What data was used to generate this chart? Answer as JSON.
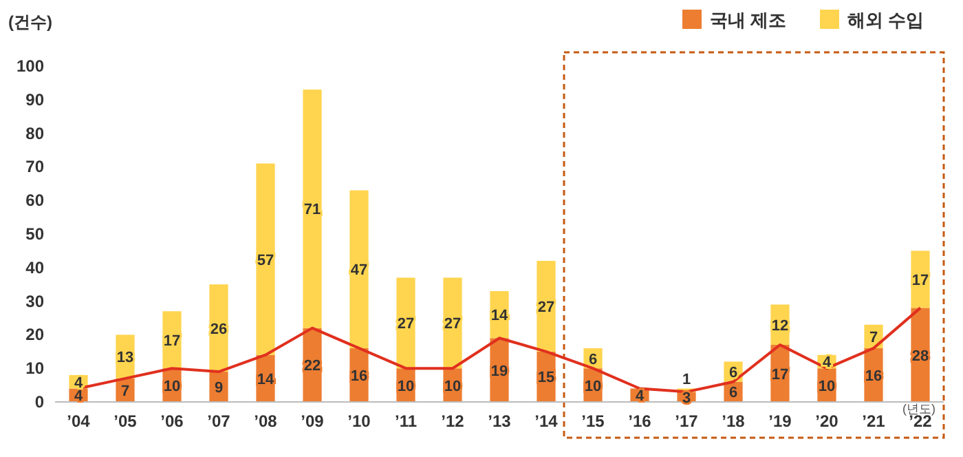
{
  "chart_data": {
    "type": "bar",
    "stacked": true,
    "ylabel": "(건수)",
    "xlabel": "(년도)",
    "categories": [
      "’04",
      "’05",
      "’06",
      "’07",
      "’08",
      "’09",
      "’10",
      "’11",
      "’12",
      "’13",
      "’14",
      "’15",
      "’16",
      "’17",
      "’18",
      "’19",
      "’20",
      "’21",
      "’22"
    ],
    "series": [
      {
        "name": "국내 제조",
        "color": "#ed7d31",
        "values": [
          4,
          7,
          10,
          9,
          14,
          22,
          16,
          10,
          10,
          19,
          15,
          10,
          4,
          3,
          6,
          17,
          10,
          16,
          28
        ],
        "value_labels": [
          "4",
          "7",
          "10",
          "9",
          "14",
          "22",
          "16",
          "10",
          "10",
          "19",
          "15",
          "10",
          "4",
          "3",
          "6",
          "17",
          "10",
          "16",
          "28"
        ]
      },
      {
        "name": "해외 수입",
        "color": "#ffd54f",
        "values": [
          4,
          13,
          17,
          26,
          57,
          71,
          47,
          27,
          27,
          14,
          27,
          6,
          null,
          1,
          6,
          12,
          4,
          7,
          17
        ],
        "value_labels": [
          "4",
          "13",
          "17",
          "26",
          "57",
          "71",
          "47",
          "27",
          "27",
          "14",
          "27",
          "6",
          null,
          "1",
          "6",
          "12",
          "4",
          "7",
          "17"
        ]
      },
      {
        "type": "line",
        "color": "#e0301e",
        "values": [
          4,
          7,
          10,
          9,
          14,
          22,
          16,
          10,
          10,
          19,
          15,
          10,
          4,
          3,
          6,
          17,
          10,
          16,
          28
        ]
      }
    ],
    "ylim": [
      0,
      100
    ],
    "yticks": [
      0,
      10,
      20,
      30,
      40,
      50,
      60,
      70,
      80,
      90,
      100
    ],
    "legend": "top right",
    "marker": "none"
  }
}
